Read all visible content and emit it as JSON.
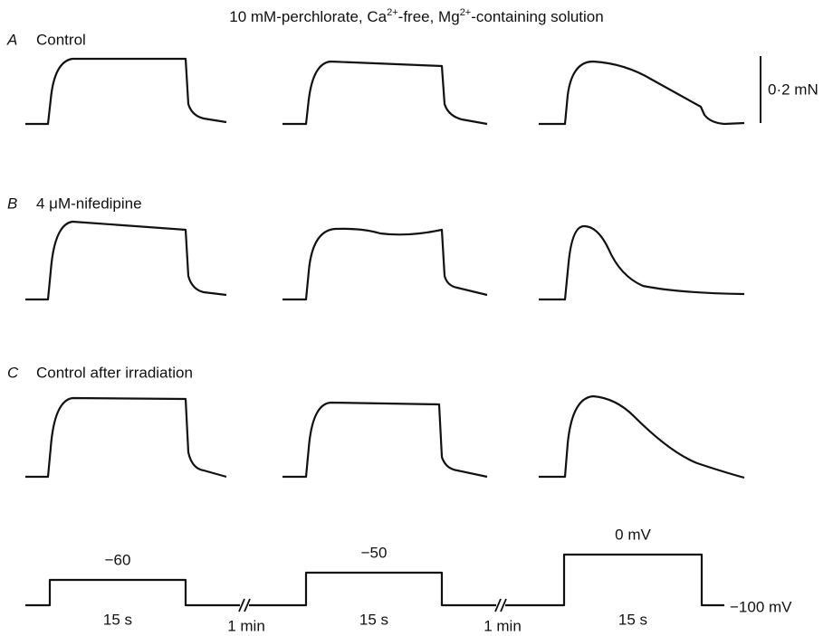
{
  "header": {
    "title": [
      "10 mM-perchlorate, Ca",
      "2+",
      "-free, Mg",
      "2+",
      "-containing solution"
    ]
  },
  "panels": [
    {
      "letter": "A",
      "label": "Control"
    },
    {
      "letter": "B",
      "label": "4 μM-nifedipine"
    },
    {
      "letter": "C",
      "label": "Control after irradiation"
    }
  ],
  "scale_bar": "0·2 mN",
  "protocol": {
    "steps": [
      "−60",
      "−50",
      "0 mV"
    ],
    "durations": [
      "15 s",
      "15 s",
      "15 s"
    ],
    "intervals": [
      "1 min",
      "1 min"
    ],
    "holding": "−100 mV"
  }
}
